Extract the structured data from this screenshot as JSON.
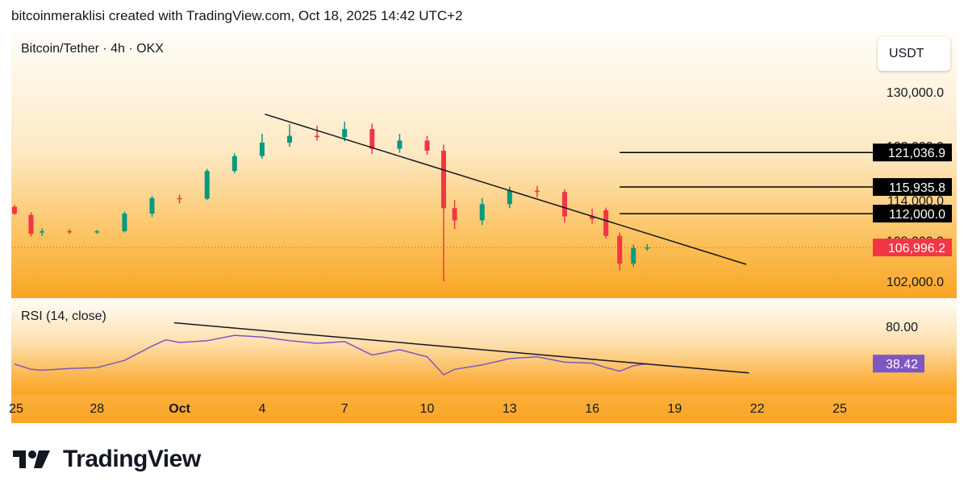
{
  "header": {
    "text": "bitcoinmeraklisi created with TradingView.com, Oct 18, 2025 14:42 UTC+2"
  },
  "main": {
    "symbol": "Bitcoin/Tether · 4h · OKX",
    "currency": "USDT",
    "price_ticks": [
      {
        "value": 130000,
        "label": "130,000.0"
      },
      {
        "value": 102000,
        "label": "102,000.0"
      }
    ],
    "hidden_ticks": [
      {
        "value": 122000,
        "label": "122,000.0"
      },
      {
        "value": 114000,
        "label": "114,000.0"
      },
      {
        "value": 108000,
        "label": "108,000.0"
      }
    ],
    "levels": [
      {
        "value": 121036.9,
        "label": "121,036.9",
        "bg": "#000000"
      },
      {
        "value": 115935.8,
        "label": "115,935.8",
        "bg": "#000000"
      },
      {
        "value": 112000.0,
        "label": "112,000.0",
        "bg": "#000000"
      }
    ],
    "current_price": {
      "value": 106996.2,
      "label": "106,996.2",
      "bg": "#f23645"
    }
  },
  "rsi": {
    "title": "RSI (14, close)",
    "tick": {
      "value": 80,
      "label": "80.00"
    },
    "current": {
      "value": 38.42,
      "label": "38.42",
      "bg": "#7e57c2"
    },
    "line_color": "#7e57c2"
  },
  "time_axis": {
    "labels": [
      {
        "day": 25,
        "label": "25"
      },
      {
        "day": 28,
        "label": "28"
      },
      {
        "day": 31,
        "label": "Oct",
        "bold": true
      },
      {
        "day": 34,
        "label": "4"
      },
      {
        "day": 37,
        "label": "7"
      },
      {
        "day": 40,
        "label": "10"
      },
      {
        "day": 43,
        "label": "13"
      },
      {
        "day": 46,
        "label": "16"
      },
      {
        "day": 49,
        "label": "19"
      },
      {
        "day": 52,
        "label": "22"
      },
      {
        "day": 55,
        "label": "25"
      }
    ]
  },
  "chart_data": {
    "type": "candlestick",
    "interval": "4h",
    "up_color": "#089981",
    "down_color": "#f23645",
    "day_axis_note": "",
    "candles_daily": [
      {
        "day": 25,
        "open": 113000,
        "high": 113300,
        "low": 111800,
        "close": 112000
      },
      {
        "day": 25.6,
        "open": 111800,
        "high": 112200,
        "low": 108600,
        "close": 109000
      },
      {
        "day": 26,
        "open": 109200,
        "high": 109800,
        "low": 108700,
        "close": 109400
      },
      {
        "day": 27,
        "open": 109400,
        "high": 109700,
        "low": 109000,
        "close": 109300
      },
      {
        "day": 28,
        "open": 109300,
        "high": 109600,
        "low": 109000,
        "close": 109400
      },
      {
        "day": 29,
        "open": 109400,
        "high": 112300,
        "low": 109200,
        "close": 112000
      },
      {
        "day": 30,
        "open": 112000,
        "high": 114600,
        "low": 111500,
        "close": 114300
      },
      {
        "day": 31,
        "open": 114300,
        "high": 114800,
        "low": 113500,
        "close": 114200
      },
      {
        "day": 32,
        "open": 114200,
        "high": 118600,
        "low": 114000,
        "close": 118300
      },
      {
        "day": 33,
        "open": 118300,
        "high": 120900,
        "low": 118000,
        "close": 120500
      },
      {
        "day": 34,
        "open": 120500,
        "high": 123800,
        "low": 120100,
        "close": 122500
      },
      {
        "day": 35,
        "open": 122500,
        "high": 125200,
        "low": 121900,
        "close": 123500
      },
      {
        "day": 36,
        "open": 123500,
        "high": 125000,
        "low": 122800,
        "close": 123300
      },
      {
        "day": 37,
        "open": 123300,
        "high": 125600,
        "low": 122700,
        "close": 124500
      },
      {
        "day": 38,
        "open": 124500,
        "high": 125300,
        "low": 120800,
        "close": 121600
      },
      {
        "day": 39,
        "open": 121600,
        "high": 123800,
        "low": 121000,
        "close": 122800
      },
      {
        "day": 40,
        "open": 122800,
        "high": 123500,
        "low": 120700,
        "close": 121300
      },
      {
        "day": 40.6,
        "open": 121300,
        "high": 122200,
        "low": 102000,
        "close": 112800
      },
      {
        "day": 41,
        "open": 112800,
        "high": 114000,
        "low": 109700,
        "close": 111000
      },
      {
        "day": 42,
        "open": 111000,
        "high": 114300,
        "low": 110300,
        "close": 113400
      },
      {
        "day": 43,
        "open": 113400,
        "high": 116000,
        "low": 112800,
        "close": 115400
      },
      {
        "day": 44,
        "open": 115400,
        "high": 116100,
        "low": 114400,
        "close": 115200
      },
      {
        "day": 45,
        "open": 115200,
        "high": 115600,
        "low": 110700,
        "close": 111600
      },
      {
        "day": 46,
        "open": 111600,
        "high": 112700,
        "low": 110500,
        "close": 111200
      },
      {
        "day": 46.5,
        "open": 112500,
        "high": 112900,
        "low": 108300,
        "close": 108700
      },
      {
        "day": 47,
        "open": 108700,
        "high": 109200,
        "low": 103600,
        "close": 104600
      },
      {
        "day": 47.5,
        "open": 104600,
        "high": 107400,
        "low": 104100,
        "close": 106900
      },
      {
        "day": 48,
        "open": 106900,
        "high": 107500,
        "low": 106500,
        "close": 107000
      }
    ],
    "price_range": [
      100000,
      133000
    ],
    "trendlines": [
      {
        "name": "",
        "from": {
          "day": 34.1,
          "price": 126700
        },
        "to": {
          "day": 51.6,
          "price": 104500
        }
      }
    ],
    "rsi_series": [
      {
        "day": 25,
        "value": 38
      },
      {
        "day": 25.6,
        "value": 32
      },
      {
        "day": 26,
        "value": 31
      },
      {
        "day": 27,
        "value": 33
      },
      {
        "day": 28,
        "value": 34
      },
      {
        "day": 29,
        "value": 42
      },
      {
        "day": 30,
        "value": 58
      },
      {
        "day": 30.5,
        "value": 65
      },
      {
        "day": 31,
        "value": 62
      },
      {
        "day": 32,
        "value": 64
      },
      {
        "day": 33,
        "value": 70
      },
      {
        "day": 34,
        "value": 68
      },
      {
        "day": 35,
        "value": 64
      },
      {
        "day": 36,
        "value": 61
      },
      {
        "day": 37,
        "value": 63
      },
      {
        "day": 38,
        "value": 48
      },
      {
        "day": 39,
        "value": 54
      },
      {
        "day": 40,
        "value": 46
      },
      {
        "day": 40.6,
        "value": 26
      },
      {
        "day": 41,
        "value": 32
      },
      {
        "day": 42,
        "value": 37
      },
      {
        "day": 43,
        "value": 44
      },
      {
        "day": 44,
        "value": 46
      },
      {
        "day": 45,
        "value": 40
      },
      {
        "day": 46,
        "value": 39
      },
      {
        "day": 46.5,
        "value": 34
      },
      {
        "day": 47,
        "value": 30
      },
      {
        "day": 47.5,
        "value": 36
      },
      {
        "day": 48,
        "value": 38.42
      }
    ],
    "rsi_range": [
      10,
      95
    ],
    "rsi_trendline": {
      "from": {
        "day": 30.8,
        "value": 84
      },
      "to": {
        "day": 51.7,
        "value": 28
      }
    }
  },
  "footer": {
    "brand": "TradingView"
  }
}
